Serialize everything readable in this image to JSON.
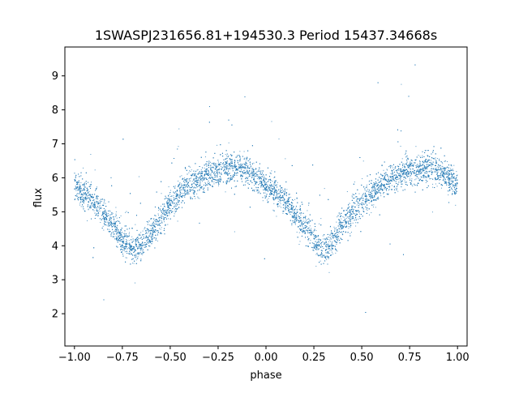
{
  "chart_data": {
    "type": "scatter",
    "title": "1SWASPJ231656.81+194530.3 Period 15437.34668s",
    "xlabel": "phase",
    "ylabel": "flux",
    "xlim": [
      -1.05,
      1.05
    ],
    "ylim": [
      1.05,
      9.85
    ],
    "xticks": [
      "-1.00",
      "-0.75",
      "-0.50",
      "-0.25",
      "0.00",
      "0.25",
      "0.50",
      "0.75",
      "1.00"
    ],
    "yticks": [
      "2",
      "3",
      "4",
      "5",
      "6",
      "7",
      "8",
      "9"
    ],
    "grid": false,
    "legend": "none",
    "marker_color": "#1f77b4",
    "series": [
      {
        "description_points": "phase-folded light curve, ~9000 points; curve sampled below",
        "x": [
          -1.0,
          -0.9,
          -0.8,
          -0.75,
          -0.7,
          -0.68,
          -0.6,
          -0.5,
          -0.4,
          -0.3,
          -0.2,
          -0.1,
          0.0,
          0.1,
          0.2,
          0.25,
          0.3,
          0.32,
          0.4,
          0.5,
          0.6,
          0.7,
          0.8,
          0.9,
          1.0
        ],
        "y": [
          5.8,
          5.3,
          4.6,
          4.2,
          3.9,
          3.9,
          4.4,
          5.2,
          5.8,
          6.1,
          6.3,
          6.2,
          5.8,
          5.3,
          4.6,
          4.2,
          3.9,
          3.9,
          4.6,
          5.3,
          5.8,
          6.1,
          6.3,
          6.2,
          5.8
        ]
      }
    ]
  }
}
